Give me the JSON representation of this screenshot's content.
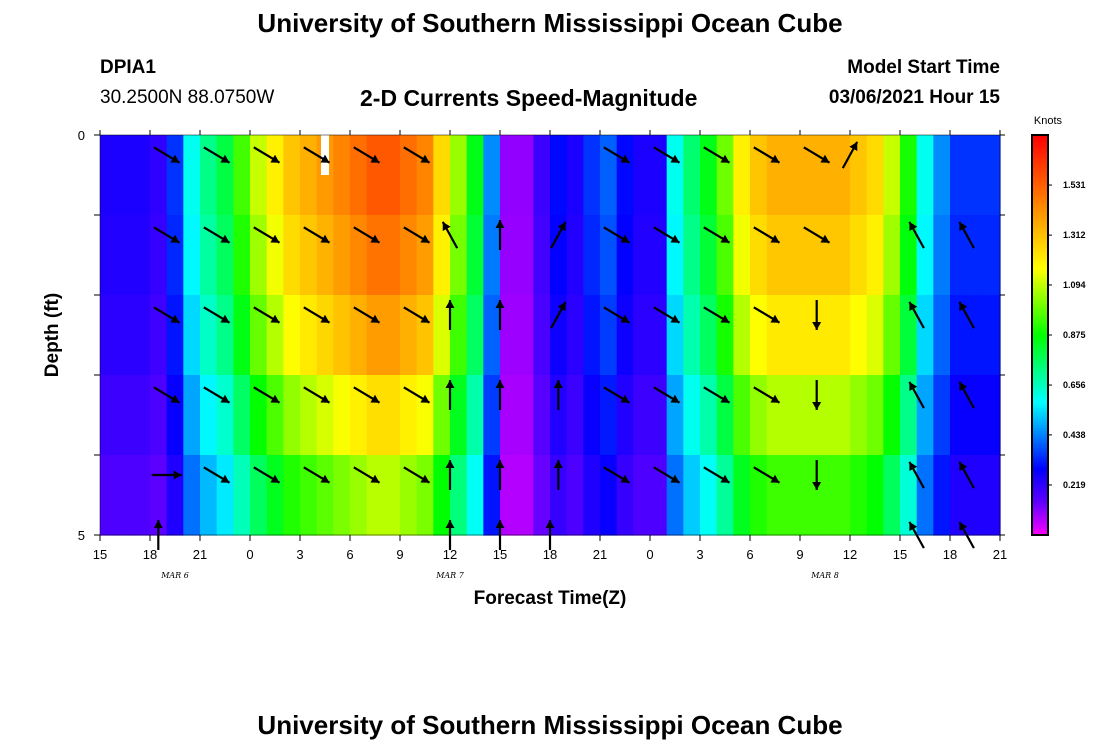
{
  "header": {
    "title": "University of Southern Mississippi Ocean Cube",
    "station_id": "DPIA1",
    "station_coords": "30.2500N 88.0750W",
    "plot_title": "2-D Currents Speed-Magnitude",
    "model_label": "Model Start Time",
    "model_time": "03/06/2021 Hour 15"
  },
  "footer": {
    "title": "University of Southern Mississippi Ocean Cube"
  },
  "chart_data": {
    "type": "heatmap",
    "title": "2-D Currents Speed-Magnitude",
    "xlabel": "Forecast Time(Z)",
    "ylabel": "Depth (ft)",
    "x_tick_labels": [
      "15",
      "18",
      "21",
      "0",
      "3",
      "6",
      "9",
      "12",
      "15",
      "18",
      "21",
      "0",
      "3",
      "6",
      "9",
      "12",
      "15",
      "18",
      "21"
    ],
    "x_range_hours": [
      0,
      54
    ],
    "date_labels": [
      {
        "text": "MAR 6",
        "hour": 4.5
      },
      {
        "text": "MAR 7",
        "hour": 21
      },
      {
        "text": "MAR 8",
        "hour": 43.5
      }
    ],
    "y_tick_labels": [
      "0",
      "",
      "",
      "",
      "",
      "5"
    ],
    "ylim": [
      0,
      5
    ],
    "colorbar": {
      "title": "Knots",
      "ticks": [
        "1.531",
        "1.312",
        "1.094",
        "0.875",
        "0.656",
        "0.438",
        "0.219"
      ],
      "range": [
        0,
        1.75
      ],
      "colors": [
        "#ff00ff",
        "#6000ff",
        "#0000ff",
        "#0080ff",
        "#00ffff",
        "#00ff80",
        "#00ff00",
        "#80ff00",
        "#ffff00",
        "#ffc000",
        "#ff8000",
        "#ff4000",
        "#ff0000"
      ]
    },
    "depth_rows": 5,
    "time_columns": 54,
    "speed_knots_surface": [
      0.25,
      0.25,
      0.25,
      0.22,
      0.35,
      0.6,
      0.72,
      0.8,
      0.95,
      1.1,
      1.2,
      1.3,
      1.35,
      1.4,
      1.45,
      1.5,
      1.55,
      1.55,
      1.5,
      1.45,
      1.25,
      1.05,
      0.85,
      0.45,
      0.1,
      0.1,
      0.2,
      0.3,
      0.25,
      0.35,
      0.4,
      0.3,
      0.25,
      0.25,
      0.6,
      0.75,
      0.85,
      1.0,
      1.2,
      1.3,
      1.35,
      1.35,
      1.35,
      1.35,
      1.35,
      1.3,
      1.25,
      1.1,
      0.9,
      0.6,
      0.45,
      0.35,
      0.35,
      0.35
    ],
    "depth_factors": [
      1.0,
      0.96,
      0.9,
      0.8,
      0.7
    ],
    "current_vectors": [
      {
        "hour": 4,
        "depth": 0.25,
        "dir": "SE"
      },
      {
        "hour": 7,
        "depth": 0.25,
        "dir": "SE"
      },
      {
        "hour": 10,
        "depth": 0.25,
        "dir": "SE"
      },
      {
        "hour": 13,
        "depth": 0.25,
        "dir": "SE"
      },
      {
        "hour": 16,
        "depth": 0.25,
        "dir": "SE"
      },
      {
        "hour": 19,
        "depth": 0.25,
        "dir": "SE"
      },
      {
        "hour": 31,
        "depth": 0.25,
        "dir": "SE"
      },
      {
        "hour": 34,
        "depth": 0.25,
        "dir": "SE"
      },
      {
        "hour": 37,
        "depth": 0.25,
        "dir": "SE"
      },
      {
        "hour": 40,
        "depth": 0.25,
        "dir": "SE"
      },
      {
        "hour": 43,
        "depth": 0.25,
        "dir": "SE"
      },
      {
        "hour": 45,
        "depth": 0.25,
        "dir": "NE"
      },
      {
        "hour": 4,
        "depth": 1.25,
        "dir": "SE"
      },
      {
        "hour": 7,
        "depth": 1.25,
        "dir": "SE"
      },
      {
        "hour": 10,
        "depth": 1.25,
        "dir": "SE"
      },
      {
        "hour": 13,
        "depth": 1.25,
        "dir": "SE"
      },
      {
        "hour": 16,
        "depth": 1.25,
        "dir": "SE"
      },
      {
        "hour": 19,
        "depth": 1.25,
        "dir": "SE"
      },
      {
        "hour": 21,
        "depth": 1.25,
        "dir": "NW"
      },
      {
        "hour": 24,
        "depth": 1.25,
        "dir": "N"
      },
      {
        "hour": 27.5,
        "depth": 1.25,
        "dir": "NE"
      },
      {
        "hour": 31,
        "depth": 1.25,
        "dir": "SE"
      },
      {
        "hour": 34,
        "depth": 1.25,
        "dir": "SE"
      },
      {
        "hour": 37,
        "depth": 1.25,
        "dir": "SE"
      },
      {
        "hour": 40,
        "depth": 1.25,
        "dir": "SE"
      },
      {
        "hour": 43,
        "depth": 1.25,
        "dir": "SE"
      },
      {
        "hour": 49,
        "depth": 1.25,
        "dir": "NW"
      },
      {
        "hour": 52,
        "depth": 1.25,
        "dir": "NW"
      },
      {
        "hour": 4,
        "depth": 2.25,
        "dir": "SE"
      },
      {
        "hour": 7,
        "depth": 2.25,
        "dir": "SE"
      },
      {
        "hour": 10,
        "depth": 2.25,
        "dir": "SE"
      },
      {
        "hour": 13,
        "depth": 2.25,
        "dir": "SE"
      },
      {
        "hour": 16,
        "depth": 2.25,
        "dir": "SE"
      },
      {
        "hour": 19,
        "depth": 2.25,
        "dir": "SE"
      },
      {
        "hour": 21,
        "depth": 2.25,
        "dir": "N"
      },
      {
        "hour": 24,
        "depth": 2.25,
        "dir": "N"
      },
      {
        "hour": 27.5,
        "depth": 2.25,
        "dir": "NE"
      },
      {
        "hour": 31,
        "depth": 2.25,
        "dir": "SE"
      },
      {
        "hour": 34,
        "depth": 2.25,
        "dir": "SE"
      },
      {
        "hour": 37,
        "depth": 2.25,
        "dir": "SE"
      },
      {
        "hour": 40,
        "depth": 2.25,
        "dir": "SE"
      },
      {
        "hour": 43,
        "depth": 2.25,
        "dir": "S"
      },
      {
        "hour": 49,
        "depth": 2.25,
        "dir": "NW"
      },
      {
        "hour": 52,
        "depth": 2.25,
        "dir": "NW"
      },
      {
        "hour": 4,
        "depth": 3.25,
        "dir": "SE"
      },
      {
        "hour": 7,
        "depth": 3.25,
        "dir": "SE"
      },
      {
        "hour": 10,
        "depth": 3.25,
        "dir": "SE"
      },
      {
        "hour": 13,
        "depth": 3.25,
        "dir": "SE"
      },
      {
        "hour": 16,
        "depth": 3.25,
        "dir": "SE"
      },
      {
        "hour": 19,
        "depth": 3.25,
        "dir": "SE"
      },
      {
        "hour": 21,
        "depth": 3.25,
        "dir": "N"
      },
      {
        "hour": 24,
        "depth": 3.25,
        "dir": "N"
      },
      {
        "hour": 27.5,
        "depth": 3.25,
        "dir": "N"
      },
      {
        "hour": 31,
        "depth": 3.25,
        "dir": "SE"
      },
      {
        "hour": 34,
        "depth": 3.25,
        "dir": "SE"
      },
      {
        "hour": 37,
        "depth": 3.25,
        "dir": "SE"
      },
      {
        "hour": 40,
        "depth": 3.25,
        "dir": "SE"
      },
      {
        "hour": 43,
        "depth": 3.25,
        "dir": "S"
      },
      {
        "hour": 49,
        "depth": 3.25,
        "dir": "NW"
      },
      {
        "hour": 52,
        "depth": 3.25,
        "dir": "NW"
      },
      {
        "hour": 4,
        "depth": 4.25,
        "dir": "E"
      },
      {
        "hour": 7,
        "depth": 4.25,
        "dir": "SE"
      },
      {
        "hour": 10,
        "depth": 4.25,
        "dir": "SE"
      },
      {
        "hour": 13,
        "depth": 4.25,
        "dir": "SE"
      },
      {
        "hour": 16,
        "depth": 4.25,
        "dir": "SE"
      },
      {
        "hour": 19,
        "depth": 4.25,
        "dir": "SE"
      },
      {
        "hour": 21,
        "depth": 4.25,
        "dir": "N"
      },
      {
        "hour": 24,
        "depth": 4.25,
        "dir": "N"
      },
      {
        "hour": 27.5,
        "depth": 4.25,
        "dir": "N"
      },
      {
        "hour": 31,
        "depth": 4.25,
        "dir": "SE"
      },
      {
        "hour": 34,
        "depth": 4.25,
        "dir": "SE"
      },
      {
        "hour": 37,
        "depth": 4.25,
        "dir": "SE"
      },
      {
        "hour": 40,
        "depth": 4.25,
        "dir": "SE"
      },
      {
        "hour": 43,
        "depth": 4.25,
        "dir": "S"
      },
      {
        "hour": 49,
        "depth": 4.25,
        "dir": "NW"
      },
      {
        "hour": 52,
        "depth": 4.25,
        "dir": "NW"
      },
      {
        "hour": 3.5,
        "depth": 5.0,
        "dir": "N"
      },
      {
        "hour": 21,
        "depth": 5.0,
        "dir": "N"
      },
      {
        "hour": 24,
        "depth": 5.0,
        "dir": "N"
      },
      {
        "hour": 27,
        "depth": 5.0,
        "dir": "N"
      },
      {
        "hour": 49,
        "depth": 5.0,
        "dir": "NW"
      },
      {
        "hour": 52,
        "depth": 5.0,
        "dir": "NW"
      }
    ],
    "current_time_marker_hour": 13.5
  }
}
